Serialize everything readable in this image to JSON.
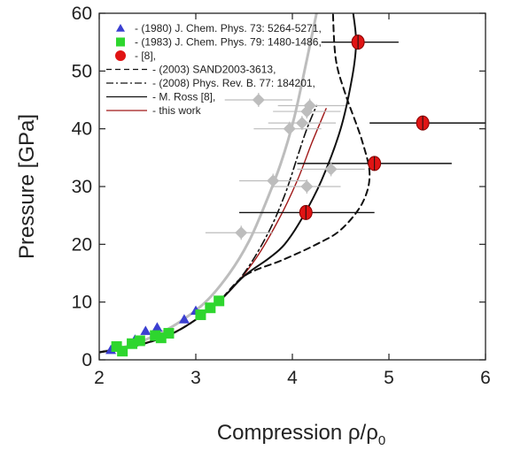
{
  "chart_data": {
    "type": "scatter",
    "xlabel": "Compression ρ/ρ",
    "xlabel_sub": "0",
    "ylabel": "Pressure [GPa]",
    "xlim": [
      2,
      6
    ],
    "ylim": [
      0,
      60
    ],
    "x_ticks": [
      "2",
      "3",
      "4",
      "5",
      "6"
    ],
    "y_ticks": [
      "0",
      "10",
      "20",
      "30",
      "40",
      "50",
      "60"
    ],
    "legend_position": "top-left",
    "colors": {
      "blue": "#3b3fd1",
      "green": "#2ed62e",
      "red": "#e01414",
      "gray": "#bdbdbd",
      "black": "#111111",
      "darkred": "#a01818"
    },
    "legend": [
      {
        "label": "- (1980) J. Chem. Phys. 73: 5264-5271,",
        "marker": "triangle",
        "color": "#3b3fd1"
      },
      {
        "label": "- (1983) J. Chem. Phys. 79: 1480-1486,",
        "marker": "square",
        "color": "#2ed62e"
      },
      {
        "label": "- [8],",
        "marker": "circle",
        "color": "#e01414"
      },
      {
        "label": "- (2003) SAND2003-3613,",
        "line": "dashed",
        "color": "#111111"
      },
      {
        "label": "- (2008) Phys. Rev. B. 77: 184201,",
        "line": "dashdot",
        "color": "#111111"
      },
      {
        "label": "- M. Ross [8],",
        "line": "solid",
        "color": "#111111"
      },
      {
        "label": "- this work",
        "line": "solid",
        "color": "#a01818"
      }
    ],
    "series": [
      {
        "marker": "triangle",
        "points": [
          [
            2.12,
            1.7
          ],
          [
            2.2,
            2.2
          ],
          [
            2.37,
            3.5
          ],
          [
            2.48,
            5.0
          ],
          [
            2.6,
            5.6
          ],
          [
            2.88,
            7.0
          ],
          [
            3.0,
            8.5
          ]
        ]
      },
      {
        "marker": "square",
        "points": [
          [
            2.18,
            2.3
          ],
          [
            2.24,
            1.5
          ],
          [
            2.34,
            2.8
          ],
          [
            2.42,
            3.3
          ],
          [
            2.58,
            4.2
          ],
          [
            2.64,
            3.8
          ],
          [
            2.72,
            4.6
          ],
          [
            3.05,
            7.8
          ],
          [
            3.15,
            9.0
          ],
          [
            3.24,
            10.2
          ]
        ]
      },
      {
        "marker": "circle",
        "points": [
          {
            "x": 4.14,
            "y": 25.5,
            "xerr": [
              3.45,
              4.85
            ]
          },
          {
            "x": 4.85,
            "y": 34.0,
            "xerr": [
              4.05,
              5.65
            ]
          },
          {
            "x": 5.35,
            "y": 41.0,
            "xerr": [
              4.8,
              6.0
            ]
          },
          {
            "x": 4.68,
            "y": 55.0,
            "xerr": [
              4.3,
              5.1
            ]
          }
        ]
      },
      {
        "marker": "diamond",
        "points": [
          {
            "x": 3.47,
            "y": 22.0,
            "xerr": [
              3.1,
              3.8
            ]
          },
          {
            "x": 3.8,
            "y": 31.0,
            "xerr": [
              3.45,
              4.15
            ]
          },
          {
            "x": 4.15,
            "y": 30.0,
            "xerr": [
              3.8,
              4.5
            ]
          },
          {
            "x": 4.4,
            "y": 33.0,
            "xerr": [
              4.05,
              4.75
            ]
          },
          {
            "x": 3.97,
            "y": 40.0,
            "xerr": [
              3.6,
              4.3
            ]
          },
          {
            "x": 4.1,
            "y": 41.0,
            "xerr": [
              3.75,
              4.45
            ]
          },
          {
            "x": 4.15,
            "y": 43.0,
            "xerr": [
              3.8,
              4.5
            ]
          },
          {
            "x": 4.18,
            "y": 44.0,
            "xerr": [
              3.85,
              4.55
            ]
          },
          {
            "x": 3.65,
            "y": 45.0,
            "xerr": [
              3.3,
              4.0
            ]
          }
        ]
      }
    ],
    "curves": [
      {
        "style": "gray",
        "points": [
          [
            2.0,
            1.3
          ],
          [
            2.3,
            2.4
          ],
          [
            2.55,
            4.0
          ],
          [
            2.8,
            6.2
          ],
          [
            3.1,
            10.0
          ],
          [
            3.35,
            15.0
          ],
          [
            3.55,
            20.5
          ],
          [
            3.72,
            27.0
          ],
          [
            3.88,
            34.0
          ],
          [
            4.02,
            42.0
          ],
          [
            4.15,
            52.0
          ],
          [
            4.25,
            60.0
          ]
        ]
      },
      {
        "style": "darkred",
        "points": [
          [
            2.0,
            1.3
          ],
          [
            2.35,
            2.4
          ],
          [
            2.7,
            4.2
          ],
          [
            3.0,
            7.0
          ],
          [
            3.3,
            11.0
          ],
          [
            3.6,
            17.0
          ],
          [
            3.85,
            24.0
          ],
          [
            4.05,
            31.0
          ],
          [
            4.2,
            37.5
          ],
          [
            4.35,
            43.5
          ]
        ]
      },
      {
        "style": "dashdot",
        "points": [
          [
            2.0,
            1.3
          ],
          [
            2.4,
            2.5
          ],
          [
            2.8,
            4.9
          ],
          [
            3.2,
            9.5
          ],
          [
            3.5,
            15.0
          ],
          [
            3.75,
            22.0
          ],
          [
            3.92,
            28.5
          ],
          [
            4.05,
            35.0
          ],
          [
            4.15,
            40.0
          ],
          [
            4.25,
            44.0
          ]
        ]
      },
      {
        "style": "solid",
        "points": [
          [
            2.0,
            1.3
          ],
          [
            2.4,
            2.5
          ],
          [
            2.8,
            4.9
          ],
          [
            3.2,
            9.5
          ],
          [
            3.5,
            14.5
          ],
          [
            3.75,
            17.5
          ],
          [
            3.92,
            20.0
          ],
          [
            4.1,
            24.5
          ],
          [
            4.3,
            31.0
          ],
          [
            4.5,
            40.0
          ],
          [
            4.62,
            49.0
          ],
          [
            4.66,
            55.0
          ],
          [
            4.63,
            60.0
          ]
        ]
      },
      {
        "style": "dashed",
        "points": [
          [
            2.0,
            1.3
          ],
          [
            2.4,
            2.5
          ],
          [
            2.8,
            4.9
          ],
          [
            3.2,
            9.5
          ],
          [
            3.5,
            14.5
          ],
          [
            3.9,
            17.3
          ],
          [
            4.25,
            20.0
          ],
          [
            4.5,
            22.5
          ],
          [
            4.72,
            27.0
          ],
          [
            4.8,
            32.0
          ],
          [
            4.72,
            38.0
          ],
          [
            4.55,
            46.0
          ],
          [
            4.45,
            52.0
          ],
          [
            4.42,
            60.0
          ]
        ]
      }
    ]
  }
}
